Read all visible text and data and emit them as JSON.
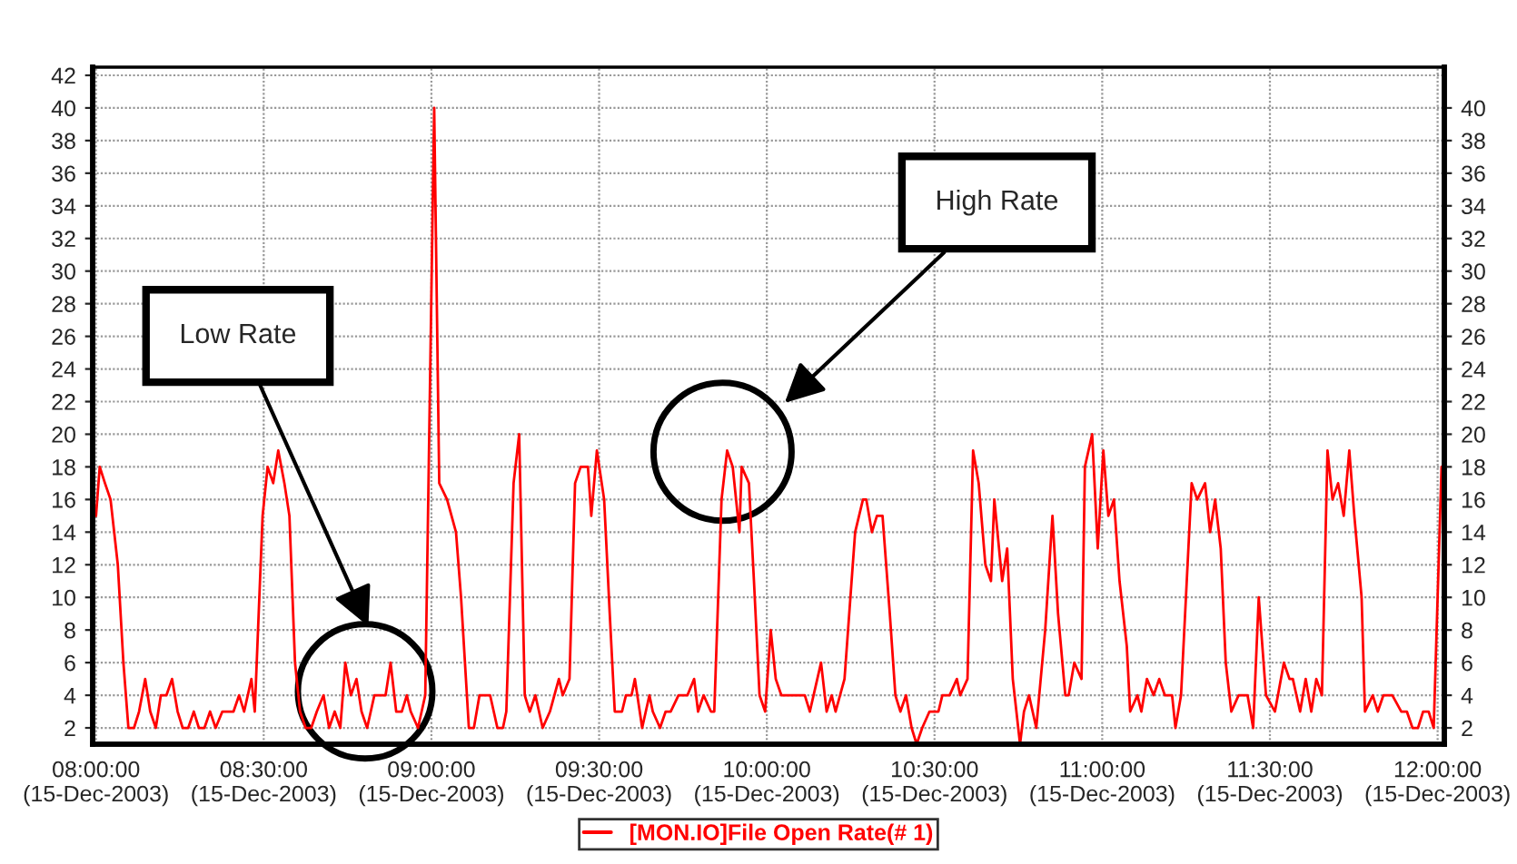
{
  "chart_data": {
    "type": "line",
    "x": [
      "2003-12-15T08:00:00",
      "2003-12-15T08:00:40",
      "2003-12-15T08:01:36",
      "2003-12-15T08:02:36",
      "2003-12-15T08:03:54",
      "2003-12-15T08:04:54",
      "2003-12-15T08:05:48",
      "2003-12-15T08:06:48",
      "2003-12-15T08:07:42",
      "2003-12-15T08:08:48",
      "2003-12-15T08:09:42",
      "2003-12-15T08:10:42",
      "2003-12-15T08:11:36",
      "2003-12-15T08:12:36",
      "2003-12-15T08:13:36",
      "2003-12-15T08:14:36",
      "2003-12-15T08:15:30",
      "2003-12-15T08:16:30",
      "2003-12-15T08:17:30",
      "2003-12-15T08:18:24",
      "2003-12-15T08:19:24",
      "2003-12-15T08:20:24",
      "2003-12-15T08:21:24",
      "2003-12-15T08:22:36",
      "2003-12-15T08:24:36",
      "2003-12-15T08:25:36",
      "2003-12-15T08:26:30",
      "2003-12-15T08:27:48",
      "2003-12-15T08:28:24",
      "2003-12-15T08:29:48",
      "2003-12-15T08:30:42",
      "2003-12-15T08:31:42",
      "2003-12-15T08:32:36",
      "2003-12-15T08:33:42",
      "2003-12-15T08:34:36",
      "2003-12-15T08:35:36",
      "2003-12-15T08:36:30",
      "2003-12-15T08:37:30",
      "2003-12-15T08:38:30",
      "2003-12-15T08:39:30",
      "2003-12-15T08:40:42",
      "2003-12-15T08:41:42",
      "2003-12-15T08:42:42",
      "2003-12-15T08:43:42",
      "2003-12-15T08:44:36",
      "2003-12-15T08:45:36",
      "2003-12-15T08:46:36",
      "2003-12-15T08:47:30",
      "2003-12-15T08:48:30",
      "2003-12-15T08:49:48",
      "2003-12-15T08:51:48",
      "2003-12-15T08:52:42",
      "2003-12-15T08:53:42",
      "2003-12-15T08:54:42",
      "2003-12-15T08:55:36",
      "2003-12-15T08:56:18",
      "2003-12-15T08:57:36",
      "2003-12-15T08:58:54",
      "2003-12-15T09:00:30",
      "2003-12-15T09:01:24",
      "2003-12-15T09:02:48",
      "2003-12-15T09:04:24",
      "2003-12-15T09:05:18",
      "2003-12-15T09:06:42",
      "2003-12-15T09:07:36",
      "2003-12-15T09:08:36",
      "2003-12-15T09:10:30",
      "2003-12-15T09:11:48",
      "2003-12-15T09:12:48",
      "2003-12-15T09:13:24",
      "2003-12-15T09:14:42",
      "2003-12-15T09:15:42",
      "2003-12-15T09:16:42",
      "2003-12-15T09:17:36",
      "2003-12-15T09:18:36",
      "2003-12-15T09:19:54",
      "2003-12-15T09:21:12",
      "2003-12-15T09:22:48",
      "2003-12-15T09:23:30",
      "2003-12-15T09:24:42",
      "2003-12-15T09:25:42",
      "2003-12-15T09:26:42",
      "2003-12-15T09:28:00",
      "2003-12-15T09:28:36",
      "2003-12-15T09:29:36",
      "2003-12-15T09:30:54",
      "2003-12-15T09:31:54",
      "2003-12-15T09:32:48",
      "2003-12-15T09:34:06",
      "2003-12-15T09:34:48",
      "2003-12-15T09:35:48",
      "2003-12-15T09:36:24",
      "2003-12-15T09:37:42",
      "2003-12-15T09:39:00",
      "2003-12-15T09:39:36",
      "2003-12-15T09:40:54",
      "2003-12-15T09:41:54",
      "2003-12-15T09:42:48",
      "2003-12-15T09:44:12",
      "2003-12-15T09:45:48",
      "2003-12-15T09:47:00",
      "2003-12-15T09:47:42",
      "2003-12-15T09:48:42",
      "2003-12-15T09:50:00",
      "2003-12-15T09:50:36",
      "2003-12-15T09:51:54",
      "2003-12-15T09:52:54",
      "2003-12-15T09:53:54",
      "2003-12-15T09:55:06",
      "2003-12-15T09:55:30",
      "2003-12-15T09:56:48",
      "2003-12-15T09:57:42",
      "2003-12-15T09:58:42",
      "2003-12-15T09:59:42",
      "2003-12-15T10:00:42",
      "2003-12-15T10:01:36",
      "2003-12-15T10:02:36",
      "2003-12-15T10:04:54",
      "2003-12-15T10:06:48",
      "2003-12-15T10:07:42",
      "2003-12-15T10:09:42",
      "2003-12-15T10:10:42",
      "2003-12-15T10:11:36",
      "2003-12-15T10:12:18",
      "2003-12-15T10:13:54",
      "2003-12-15T10:15:48",
      "2003-12-15T10:17:12",
      "2003-12-15T10:17:48",
      "2003-12-15T10:18:48",
      "2003-12-15T10:19:42",
      "2003-12-15T10:20:42",
      "2003-12-15T10:22:00",
      "2003-12-15T10:23:00",
      "2003-12-15T10:23:54",
      "2003-12-15T10:24:54",
      "2003-12-15T10:25:54",
      "2003-12-15T10:26:48",
      "2003-12-15T10:27:48",
      "2003-12-15T10:29:06",
      "2003-12-15T10:30:42",
      "2003-12-15T10:31:24",
      "2003-12-15T10:32:42",
      "2003-12-15T10:34:00",
      "2003-12-15T10:34:36",
      "2003-12-15T10:35:54",
      "2003-12-15T10:36:54",
      "2003-12-15T10:37:54",
      "2003-12-15T10:39:06",
      "2003-12-15T10:40:06",
      "2003-12-15T10:40:42",
      "2003-12-15T10:42:06",
      "2003-12-15T10:43:00",
      "2003-12-15T10:44:00",
      "2003-12-15T10:45:18",
      "2003-12-15T10:46:00",
      "2003-12-15T10:46:54",
      "2003-12-15T10:48:12",
      "2003-12-15T10:49:48",
      "2003-12-15T10:51:06",
      "2003-12-15T10:52:06",
      "2003-12-15T10:53:24",
      "2003-12-15T10:54:00",
      "2003-12-15T10:55:00",
      "2003-12-15T10:56:18",
      "2003-12-15T10:56:54",
      "2003-12-15T10:58:12",
      "2003-12-15T10:59:12",
      "2003-12-15T11:00:12",
      "2003-12-15T11:01:06",
      "2003-12-15T11:02:06",
      "2003-12-15T11:03:06",
      "2003-12-15T11:04:24",
      "2003-12-15T11:05:00",
      "2003-12-15T11:06:18",
      "2003-12-15T11:07:00",
      "2003-12-15T11:08:00",
      "2003-12-15T11:09:12",
      "2003-12-15T11:10:12",
      "2003-12-15T11:11:12",
      "2003-12-15T11:12:30",
      "2003-12-15T11:13:06",
      "2003-12-15T11:14:06",
      "2003-12-15T11:16:00",
      "2003-12-15T11:17:00",
      "2003-12-15T11:18:24",
      "2003-12-15T11:19:18",
      "2003-12-15T11:20:12",
      "2003-12-15T11:21:12",
      "2003-12-15T11:22:06",
      "2003-12-15T11:23:06",
      "2003-12-15T11:24:24",
      "2003-12-15T11:26:00",
      "2003-12-15T11:27:00",
      "2003-12-15T11:28:00",
      "2003-12-15T11:29:18",
      "2003-12-15T11:30:54",
      "2003-12-15T11:32:30",
      "2003-12-15T11:33:30",
      "2003-12-15T11:34:06",
      "2003-12-15T11:35:24",
      "2003-12-15T11:36:24",
      "2003-12-15T11:37:24",
      "2003-12-15T11:38:18",
      "2003-12-15T11:39:18",
      "2003-12-15T11:40:18",
      "2003-12-15T11:41:12",
      "2003-12-15T11:42:12",
      "2003-12-15T11:43:12",
      "2003-12-15T11:44:12",
      "2003-12-15T11:45:06",
      "2003-12-15T11:46:24",
      "2003-12-15T11:47:00",
      "2003-12-15T11:48:24",
      "2003-12-15T11:49:18",
      "2003-12-15T11:50:18",
      "2003-12-15T11:51:54",
      "2003-12-15T11:53:30",
      "2003-12-15T11:54:30",
      "2003-12-15T11:55:30",
      "2003-12-15T11:56:30",
      "2003-12-15T11:57:24",
      "2003-12-15T11:58:24",
      "2003-12-15T11:59:18",
      "2003-12-15T12:00:42"
    ],
    "series": [
      {
        "name": "[MON.IO]File Open Rate(# 1)",
        "color": "#ff0000",
        "values": [
          15,
          18,
          17,
          16,
          12,
          6,
          2,
          2,
          3,
          5,
          3,
          2,
          4,
          4,
          5,
          3,
          2,
          2,
          3,
          2,
          2,
          3,
          2,
          3,
          3,
          4,
          3,
          5,
          3,
          15,
          18,
          17,
          19,
          17,
          15,
          6,
          3,
          2,
          2,
          3,
          4,
          2,
          3,
          2,
          6,
          4,
          5,
          3,
          2,
          4,
          4,
          6,
          3,
          3,
          4,
          3,
          2,
          4,
          40,
          17,
          16,
          14,
          10,
          2,
          2,
          4,
          4,
          2,
          2,
          3,
          17,
          20,
          4,
          3,
          4,
          2,
          3,
          5,
          4,
          5,
          17,
          18,
          18,
          15,
          19,
          16,
          9,
          3,
          3,
          4,
          4,
          5,
          2,
          4,
          3,
          2,
          3,
          3,
          4,
          4,
          5,
          3,
          4,
          3,
          3,
          16,
          19,
          18,
          14,
          18,
          17,
          11,
          4,
          3,
          8,
          5,
          4,
          4,
          4,
          3,
          6,
          3,
          4,
          3,
          5,
          14,
          16,
          16,
          14,
          15,
          15,
          9,
          4,
          3,
          4,
          2,
          1,
          2,
          3,
          3,
          4,
          4,
          5,
          4,
          5,
          19,
          17,
          12,
          11,
          16,
          11,
          13,
          5,
          1,
          3,
          4,
          2,
          8,
          15,
          9,
          4,
          4,
          6,
          5,
          18,
          20,
          13,
          19,
          15,
          16,
          11,
          7,
          3,
          4,
          3,
          5,
          4,
          5,
          4,
          4,
          2,
          4,
          17,
          16,
          17,
          14,
          16,
          13,
          6,
          3,
          4,
          4,
          2,
          10,
          4,
          3,
          6,
          5,
          5,
          3,
          5,
          3,
          5,
          4,
          19,
          16,
          17,
          15,
          19,
          15,
          10,
          3,
          4,
          3,
          4,
          4,
          3,
          3,
          2,
          2,
          3,
          3,
          2,
          18
        ]
      }
    ],
    "xlim": [
      "2003-12-15T07:59:24",
      "2003-12-15T12:01:12"
    ],
    "xticks": [
      {
        "value": "2003-12-15T08:00",
        "label": "08:00:00\n(15-Dec-2003)"
      },
      {
        "value": "2003-12-15T08:30",
        "label": "08:30:00\n(15-Dec-2003)"
      },
      {
        "value": "2003-12-15T09:00",
        "label": "09:00:00\n(15-Dec-2003)"
      },
      {
        "value": "2003-12-15T09:30",
        "label": "09:30:00\n(15-Dec-2003)"
      },
      {
        "value": "2003-12-15T10:00",
        "label": "10:00:00\n(15-Dec-2003)"
      },
      {
        "value": "2003-12-15T10:30",
        "label": "10:30:00\n(15-Dec-2003)"
      },
      {
        "value": "2003-12-15T11:00",
        "label": "11:00:00\n(15-Dec-2003)"
      },
      {
        "value": "2003-12-15T11:30",
        "label": "11:30:00\n(15-Dec-2003)"
      },
      {
        "value": "2003-12-15T12:00",
        "label": "12:00:00\n(15-Dec-2003)"
      }
    ],
    "ylim": [
      1,
      42.5
    ],
    "yticks": [
      2,
      4,
      6,
      8,
      10,
      12,
      14,
      16,
      18,
      20,
      22,
      24,
      26,
      28,
      30,
      32,
      34,
      36,
      38,
      40,
      42
    ],
    "y2lim": [
      1,
      42.5
    ],
    "y2ticks": [
      2,
      4,
      6,
      8,
      10,
      12,
      14,
      16,
      18,
      20,
      22,
      24,
      26,
      28,
      30,
      32,
      34,
      36,
      38,
      40
    ],
    "annotations": [
      "Low Rate",
      "High Rate"
    ],
    "grid": true,
    "legend": "bottom",
    "marker": "none",
    "line_style": "solid"
  }
}
